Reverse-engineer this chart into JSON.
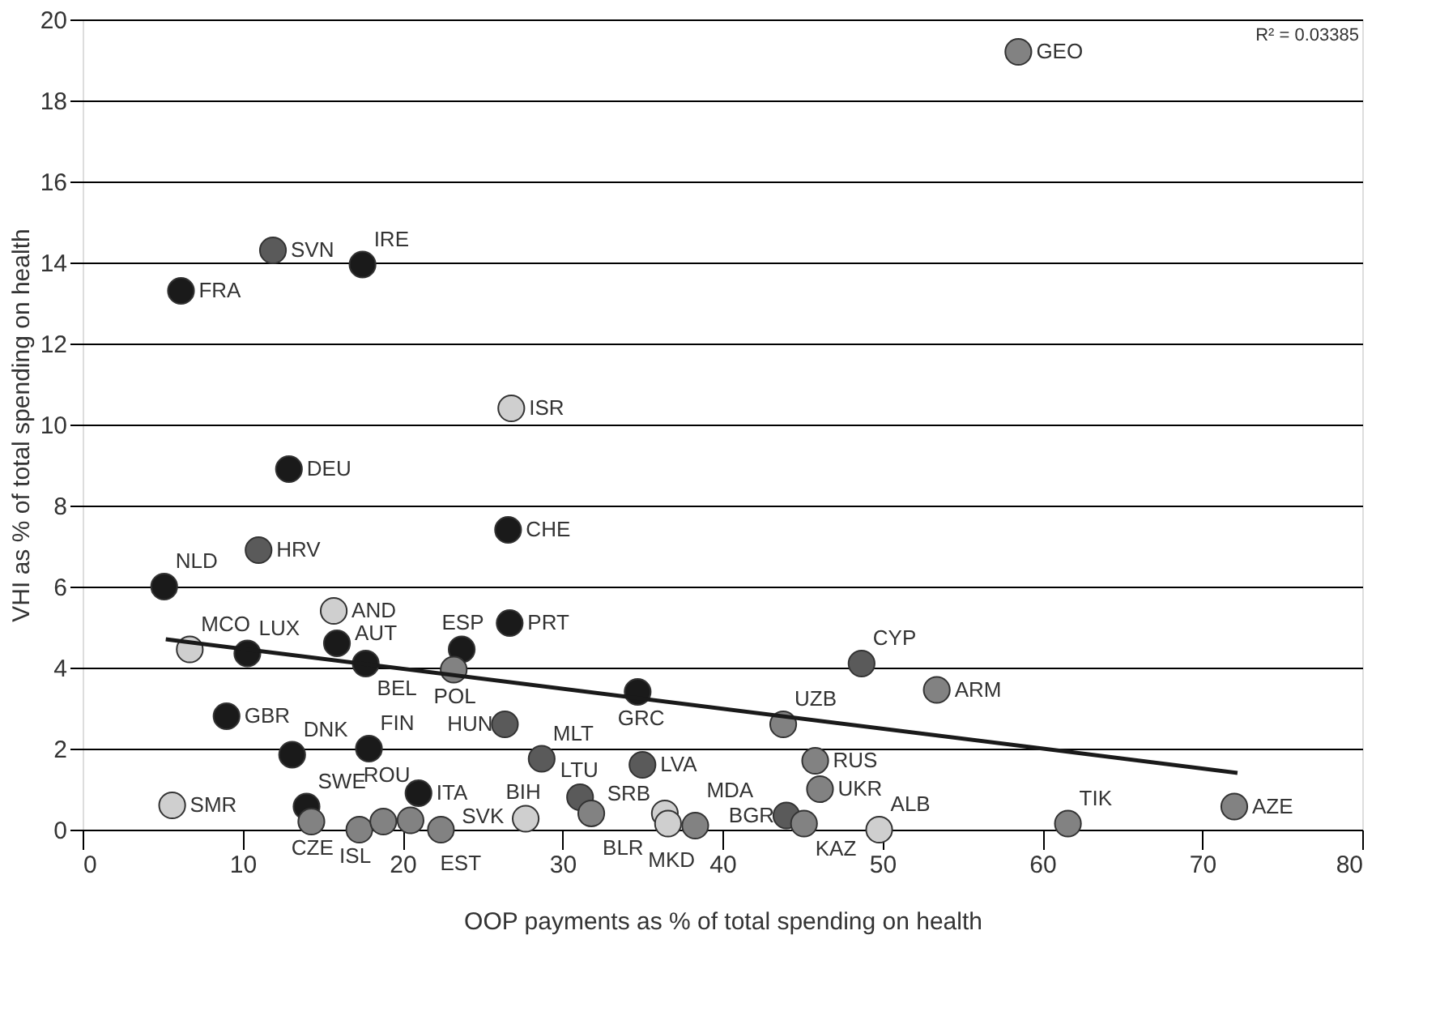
{
  "chart_data": {
    "type": "scatter",
    "xlabel": "OOP payments as % of total spending on health",
    "ylabel": "VHI as % of total spending on health",
    "xlim": [
      0,
      80
    ],
    "xticks": [
      0,
      10,
      20,
      30,
      40,
      50,
      60,
      70,
      80
    ],
    "ylim": [
      0,
      20
    ],
    "yticks": [
      0,
      2,
      4,
      6,
      8,
      10,
      12,
      14,
      16,
      18,
      20
    ],
    "grid": "y",
    "marker": "circle",
    "series": [
      {
        "color": "#1a1a1a",
        "x": [
          6.15,
          17.5,
          12.9,
          5.1,
          26.6,
          10.3,
          15.9,
          17.7,
          23.7,
          26.7,
          9.0,
          13.1,
          17.9,
          34.7,
          21.0,
          14.0
        ],
        "values": [
          13.3,
          13.95,
          8.9,
          6.0,
          7.4,
          4.35,
          4.6,
          4.1,
          4.45,
          5.1,
          2.8,
          1.85,
          2.0,
          3.4,
          0.9,
          0.57
        ]
      },
      {
        "color": "#5a5a5a",
        "x": [
          11.9,
          11.0,
          48.7,
          28.7,
          35.0,
          26.4,
          44.0,
          31.1
        ],
        "values": [
          14.3,
          6.9,
          4.1,
          1.75,
          1.6,
          2.6,
          0.35,
          0.8
        ]
      },
      {
        "color": "#828282",
        "x": [
          58.5,
          43.8,
          53.4,
          45.8,
          46.1,
          72.0,
          61.6,
          45.1,
          14.3,
          17.3,
          18.8,
          20.5,
          22.4,
          23.2,
          31.8,
          38.3
        ],
        "values": [
          19.2,
          2.6,
          3.45,
          1.7,
          1.0,
          0.57,
          0.15,
          0.15,
          0.2,
          0.0,
          0.2,
          0.23,
          0.0,
          3.95,
          0.4,
          0.1
        ]
      },
      {
        "color": "#cfcfcf",
        "x": [
          26.8,
          15.7,
          6.7,
          5.6,
          27.7,
          36.4,
          36.6,
          49.8
        ],
        "values": [
          10.4,
          5.4,
          4.45,
          0.6,
          0.27,
          0.4,
          0.15,
          0.0
        ]
      },
      {
        "type": "line",
        "marker": "none",
        "color": "#1a1a1a",
        "x": [
          5.2,
          72.2
        ],
        "values": [
          4.7,
          1.4
        ]
      }
    ],
    "annotations": [
      "R² = 0.03385",
      {
        "text": "FRA",
        "x": 6.15,
        "y": 13.3
      },
      {
        "text": "IRE",
        "x": 17.5,
        "y": 13.95
      },
      {
        "text": "DEU",
        "x": 12.9,
        "y": 8.9
      },
      {
        "text": "NLD",
        "x": 5.1,
        "y": 6.0
      },
      {
        "text": "CHE",
        "x": 26.6,
        "y": 7.4
      },
      {
        "text": "LUX",
        "x": 10.3,
        "y": 4.35
      },
      {
        "text": "AUT",
        "x": 15.9,
        "y": 4.6
      },
      {
        "text": "BEL",
        "x": 17.7,
        "y": 4.1
      },
      {
        "text": "ESP",
        "x": 23.7,
        "y": 4.45
      },
      {
        "text": "PRT",
        "x": 26.7,
        "y": 5.1
      },
      {
        "text": "GBR",
        "x": 9.0,
        "y": 2.8
      },
      {
        "text": "DNK",
        "x": 13.1,
        "y": 1.85
      },
      {
        "text": "FIN",
        "x": 17.9,
        "y": 2.0
      },
      {
        "text": "GRC",
        "x": 34.7,
        "y": 3.4
      },
      {
        "text": "ITA",
        "x": 21.0,
        "y": 0.9
      },
      {
        "text": "SWE",
        "x": 14.0,
        "y": 0.57
      },
      {
        "text": "SVN",
        "x": 11.9,
        "y": 14.3
      },
      {
        "text": "HRV",
        "x": 11.0,
        "y": 6.9
      },
      {
        "text": "CYP",
        "x": 48.7,
        "y": 4.1
      },
      {
        "text": "MLT",
        "x": 28.7,
        "y": 1.75
      },
      {
        "text": "LVA",
        "x": 35.0,
        "y": 1.6
      },
      {
        "text": "HUN",
        "x": 26.4,
        "y": 2.6
      },
      {
        "text": "BGR",
        "x": 44.0,
        "y": 0.35
      },
      {
        "text": "LTU",
        "x": 31.1,
        "y": 0.8
      },
      {
        "text": "GEO",
        "x": 58.5,
        "y": 19.2
      },
      {
        "text": "UZB",
        "x": 43.8,
        "y": 2.6
      },
      {
        "text": "ARM",
        "x": 53.4,
        "y": 3.45
      },
      {
        "text": "RUS",
        "x": 45.8,
        "y": 1.7
      },
      {
        "text": "UKR",
        "x": 46.1,
        "y": 1.0
      },
      {
        "text": "AZE",
        "x": 72.0,
        "y": 0.57
      },
      {
        "text": "TIK",
        "x": 61.6,
        "y": 0.15
      },
      {
        "text": "KAZ",
        "x": 45.1,
        "y": 0.15
      },
      {
        "text": "CZE",
        "x": 14.3,
        "y": 0.2
      },
      {
        "text": "ISL",
        "x": 17.3,
        "y": 0.0
      },
      {
        "text": "ROU",
        "x": 18.8,
        "y": 0.2
      },
      {
        "text": "EST",
        "x": 20.5,
        "y": 0.23
      },
      {
        "text": "SVK",
        "x": 22.4,
        "y": 0.0
      },
      {
        "text": "POL",
        "x": 23.2,
        "y": 3.95
      },
      {
        "text": "BLR",
        "x": 31.8,
        "y": 0.4
      },
      {
        "text": "MDA",
        "x": 38.3,
        "y": 0.1
      },
      {
        "text": "ISR",
        "x": 26.8,
        "y": 10.4
      },
      {
        "text": "AND",
        "x": 15.7,
        "y": 5.4
      },
      {
        "text": "MCO",
        "x": 6.7,
        "y": 4.45
      },
      {
        "text": "SMR",
        "x": 5.6,
        "y": 0.6
      },
      {
        "text": "BIH",
        "x": 27.7,
        "y": 0.27
      },
      {
        "text": "MKD",
        "x": 36.6,
        "y": 0.15
      },
      {
        "text": "SRB",
        "x": 36.4,
        "y": 0.4
      },
      {
        "text": "ALB",
        "x": 49.8,
        "y": 0.0
      }
    ]
  }
}
